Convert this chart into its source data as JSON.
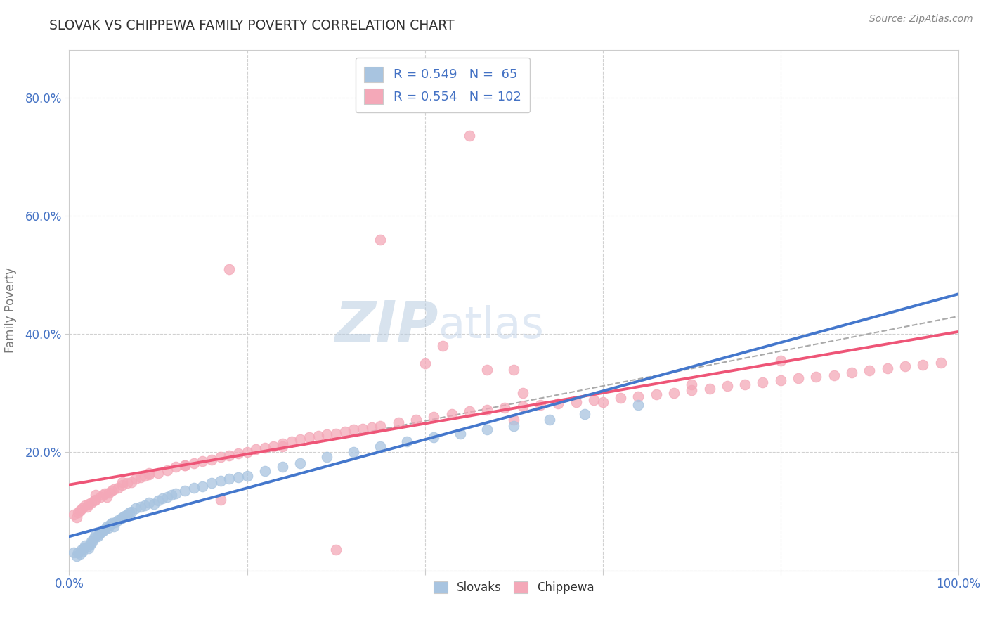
{
  "title": "SLOVAK VS CHIPPEWA FAMILY POVERTY CORRELATION CHART",
  "source_text": "Source: ZipAtlas.com",
  "ylabel": "Family Poverty",
  "xlim": [
    0.0,
    1.0
  ],
  "ylim": [
    0.0,
    0.88
  ],
  "xtick_positions": [
    0.0,
    0.2,
    0.4,
    0.6,
    0.8,
    1.0
  ],
  "xticklabels": [
    "0.0%",
    "",
    "",
    "",
    "",
    "100.0%"
  ],
  "ytick_positions": [
    0.0,
    0.2,
    0.4,
    0.6,
    0.8
  ],
  "yticklabels": [
    "",
    "20.0%",
    "40.0%",
    "60.0%",
    "80.0%"
  ],
  "legend1_label": "R = 0.549   N =  65",
  "legend2_label": "R = 0.554   N = 102",
  "Slovak_color": "#a8c4e0",
  "Chippewa_color": "#f4a8b8",
  "Slovak_line_color": "#4477cc",
  "Chippewa_line_color": "#ee5577",
  "dash_line_color": "#aaaaaa",
  "watermark_color": "#c5d5ea",
  "tick_color": "#4472c4",
  "title_color": "#333333",
  "grid_color": "#cccccc",
  "Slovak_x": [
    0.005,
    0.008,
    0.01,
    0.012,
    0.014,
    0.015,
    0.016,
    0.018,
    0.02,
    0.022,
    0.024,
    0.025,
    0.026,
    0.028,
    0.03,
    0.032,
    0.034,
    0.036,
    0.038,
    0.04,
    0.042,
    0.044,
    0.046,
    0.048,
    0.05,
    0.052,
    0.055,
    0.058,
    0.06,
    0.062,
    0.065,
    0.068,
    0.07,
    0.075,
    0.08,
    0.085,
    0.09,
    0.095,
    0.1,
    0.105,
    0.11,
    0.115,
    0.12,
    0.13,
    0.14,
    0.15,
    0.16,
    0.17,
    0.18,
    0.19,
    0.2,
    0.22,
    0.24,
    0.26,
    0.29,
    0.32,
    0.35,
    0.38,
    0.41,
    0.44,
    0.47,
    0.5,
    0.54,
    0.58,
    0.64
  ],
  "Slovak_y": [
    0.03,
    0.025,
    0.03,
    0.028,
    0.035,
    0.032,
    0.038,
    0.042,
    0.04,
    0.038,
    0.045,
    0.05,
    0.048,
    0.055,
    0.06,
    0.058,
    0.062,
    0.065,
    0.068,
    0.07,
    0.075,
    0.072,
    0.078,
    0.08,
    0.075,
    0.082,
    0.085,
    0.088,
    0.09,
    0.092,
    0.095,
    0.098,
    0.1,
    0.105,
    0.108,
    0.11,
    0.115,
    0.112,
    0.118,
    0.122,
    0.125,
    0.128,
    0.13,
    0.135,
    0.14,
    0.142,
    0.148,
    0.152,
    0.155,
    0.158,
    0.16,
    0.168,
    0.175,
    0.182,
    0.192,
    0.2,
    0.21,
    0.218,
    0.225,
    0.232,
    0.238,
    0.245,
    0.255,
    0.265,
    0.28
  ],
  "Chippewa_x": [
    0.005,
    0.008,
    0.01,
    0.012,
    0.015,
    0.018,
    0.02,
    0.022,
    0.025,
    0.028,
    0.03,
    0.035,
    0.038,
    0.04,
    0.042,
    0.045,
    0.048,
    0.05,
    0.055,
    0.06,
    0.065,
    0.07,
    0.075,
    0.08,
    0.085,
    0.09,
    0.1,
    0.11,
    0.12,
    0.13,
    0.14,
    0.15,
    0.16,
    0.17,
    0.18,
    0.19,
    0.2,
    0.21,
    0.22,
    0.23,
    0.24,
    0.25,
    0.26,
    0.27,
    0.28,
    0.29,
    0.3,
    0.31,
    0.32,
    0.33,
    0.34,
    0.35,
    0.37,
    0.39,
    0.41,
    0.43,
    0.45,
    0.47,
    0.49,
    0.51,
    0.53,
    0.55,
    0.57,
    0.59,
    0.62,
    0.64,
    0.66,
    0.68,
    0.7,
    0.72,
    0.74,
    0.76,
    0.78,
    0.8,
    0.82,
    0.84,
    0.86,
    0.88,
    0.9,
    0.92,
    0.94,
    0.96,
    0.98,
    0.03,
    0.06,
    0.09,
    0.13,
    0.17,
    0.24,
    0.3,
    0.4,
    0.5,
    0.6,
    0.7,
    0.8,
    0.18,
    0.35,
    0.5,
    0.45,
    0.42,
    0.47,
    0.51
  ],
  "Chippewa_y": [
    0.095,
    0.09,
    0.098,
    0.102,
    0.105,
    0.11,
    0.108,
    0.112,
    0.115,
    0.118,
    0.12,
    0.125,
    0.128,
    0.13,
    0.125,
    0.132,
    0.135,
    0.138,
    0.14,
    0.145,
    0.148,
    0.15,
    0.155,
    0.158,
    0.16,
    0.162,
    0.165,
    0.17,
    0.175,
    0.178,
    0.182,
    0.185,
    0.188,
    0.192,
    0.195,
    0.198,
    0.2,
    0.205,
    0.208,
    0.21,
    0.215,
    0.218,
    0.222,
    0.225,
    0.228,
    0.23,
    0.232,
    0.235,
    0.238,
    0.24,
    0.242,
    0.245,
    0.25,
    0.255,
    0.26,
    0.265,
    0.27,
    0.272,
    0.275,
    0.278,
    0.28,
    0.282,
    0.285,
    0.288,
    0.292,
    0.295,
    0.298,
    0.3,
    0.305,
    0.308,
    0.312,
    0.315,
    0.318,
    0.322,
    0.325,
    0.328,
    0.33,
    0.335,
    0.338,
    0.342,
    0.345,
    0.348,
    0.352,
    0.128,
    0.15,
    0.165,
    0.178,
    0.12,
    0.21,
    0.035,
    0.35,
    0.255,
    0.285,
    0.315,
    0.355,
    0.51,
    0.56,
    0.34,
    0.735,
    0.38,
    0.34,
    0.3
  ]
}
